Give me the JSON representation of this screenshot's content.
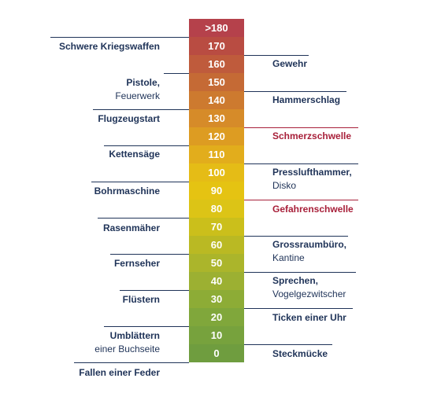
{
  "scale": {
    "levels": [
      {
        "value": ">180",
        "color": "#b5414b"
      },
      {
        "value": "170",
        "color": "#b94c42"
      },
      {
        "value": "160",
        "color": "#bf5b3c"
      },
      {
        "value": "150",
        "color": "#c56a35"
      },
      {
        "value": "140",
        "color": "#cd7a2f"
      },
      {
        "value": "130",
        "color": "#d68b29"
      },
      {
        "value": "120",
        "color": "#dd9c22"
      },
      {
        "value": "110",
        "color": "#e2ad1c"
      },
      {
        "value": "100",
        "color": "#e5bc16"
      },
      {
        "value": "90",
        "color": "#e5c312"
      },
      {
        "value": "80",
        "color": "#dcc416"
      },
      {
        "value": "70",
        "color": "#cbbf1b"
      },
      {
        "value": "60",
        "color": "#bab923"
      },
      {
        "value": "50",
        "color": "#abb52b"
      },
      {
        "value": "40",
        "color": "#9cb032"
      },
      {
        "value": "30",
        "color": "#8dac36"
      },
      {
        "value": "20",
        "color": "#80a73b"
      },
      {
        "value": "10",
        "color": "#77a23d"
      },
      {
        "value": "0",
        "color": "#6f9d3f"
      }
    ]
  },
  "left_labels": [
    {
      "main": "Schwere Kriegswaffen",
      "sub": ""
    },
    {
      "main": "Pistole,",
      "sub": "Feuerwerk"
    },
    {
      "main": "Flugzeugstart",
      "sub": ""
    },
    {
      "main": "Kettensäge",
      "sub": ""
    },
    {
      "main": "Bohrmaschine",
      "sub": ""
    },
    {
      "main": "Rasenmäher",
      "sub": ""
    },
    {
      "main": "Fernseher",
      "sub": ""
    },
    {
      "main": "Flüstern",
      "sub": ""
    },
    {
      "main": "Umblättern",
      "sub": "einer Buchseite"
    },
    {
      "main": "Fallen einer Feder",
      "sub": ""
    }
  ],
  "right_labels": [
    {
      "main": "Gewehr",
      "sub": "",
      "threshold": false
    },
    {
      "main": "Hammerschlag",
      "sub": "",
      "threshold": false
    },
    {
      "main": "Schmerzschwelle",
      "sub": "",
      "threshold": true
    },
    {
      "main": "Presslufthammer,",
      "sub": "Disko",
      "threshold": false
    },
    {
      "main": "Gefahrenschwelle",
      "sub": "",
      "threshold": true
    },
    {
      "main": "Grossraumbüro,",
      "sub": "Kantine",
      "threshold": false
    },
    {
      "main": "Sprechen,",
      "sub": "Vogelgezwitscher",
      "threshold": false
    },
    {
      "main": "Ticken einer Uhr",
      "sub": "",
      "threshold": false
    },
    {
      "main": "Steckmücke",
      "sub": "",
      "threshold": false
    }
  ],
  "colors": {
    "text": "#1f3358",
    "threshold": "#a8203a"
  }
}
